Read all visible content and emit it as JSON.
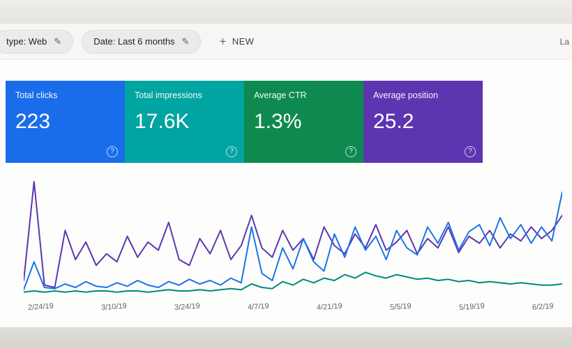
{
  "toolbar": {
    "chips": [
      {
        "label": "type: Web"
      },
      {
        "label": "Date: Last 6 months"
      }
    ],
    "edit_icon": "✎",
    "plus_icon": "+",
    "new_label": "NEW",
    "right_text": "La"
  },
  "cards": [
    {
      "title": "Total clicks",
      "value": "223",
      "color": "#1a6dea",
      "help": "?"
    },
    {
      "title": "Total impressions",
      "value": "17.6K",
      "color": "#00a4a0",
      "help": "?"
    },
    {
      "title": "Average CTR",
      "value": "1.3%",
      "color": "#0e8a50",
      "help": "?"
    },
    {
      "title": "Average position",
      "value": "25.2",
      "color": "#5e35b1",
      "help": "?"
    }
  ],
  "chart_data": {
    "type": "line",
    "title": "",
    "xlabel": "",
    "ylabel": "",
    "grid": false,
    "legend": "none",
    "ylim": [
      0,
      100
    ],
    "x_labels": [
      "2/24/19",
      "3/10/19",
      "3/24/19",
      "4/7/19",
      "4/21/19",
      "5/5/19",
      "5/19/19",
      "6/2/19"
    ],
    "series": [
      {
        "name": "purple-line",
        "color": "#5e35b1",
        "values": [
          12,
          97,
          8,
          6,
          55,
          30,
          45,
          25,
          35,
          28,
          50,
          32,
          45,
          38,
          62,
          30,
          25,
          48,
          35,
          55,
          30,
          42,
          68,
          40,
          32,
          55,
          38,
          48,
          30,
          58,
          42,
          35,
          52,
          40,
          60,
          38,
          45,
          55,
          35,
          48,
          40,
          58,
          36,
          50,
          44,
          55,
          40,
          52,
          46,
          58,
          48,
          55,
          68
        ]
      },
      {
        "name": "blue-line",
        "color": "#1a73e8",
        "values": [
          4,
          28,
          6,
          5,
          9,
          6,
          11,
          7,
          6,
          10,
          7,
          12,
          8,
          6,
          11,
          8,
          13,
          9,
          12,
          8,
          14,
          10,
          58,
          18,
          12,
          40,
          22,
          48,
          28,
          20,
          52,
          32,
          58,
          38,
          50,
          30,
          55,
          40,
          34,
          58,
          44,
          62,
          38,
          54,
          60,
          42,
          66,
          48,
          60,
          44,
          58,
          46,
          88
        ]
      },
      {
        "name": "teal-line",
        "color": "#00897b",
        "values": [
          2,
          3,
          2,
          3,
          2,
          3,
          2,
          3,
          3,
          2,
          3,
          3,
          2,
          3,
          4,
          3,
          3,
          4,
          3,
          4,
          5,
          4,
          9,
          6,
          5,
          11,
          8,
          13,
          10,
          14,
          12,
          17,
          14,
          19,
          16,
          14,
          17,
          15,
          13,
          14,
          12,
          13,
          11,
          12,
          10,
          11,
          10,
          9,
          10,
          9,
          8,
          8,
          9
        ]
      }
    ]
  }
}
